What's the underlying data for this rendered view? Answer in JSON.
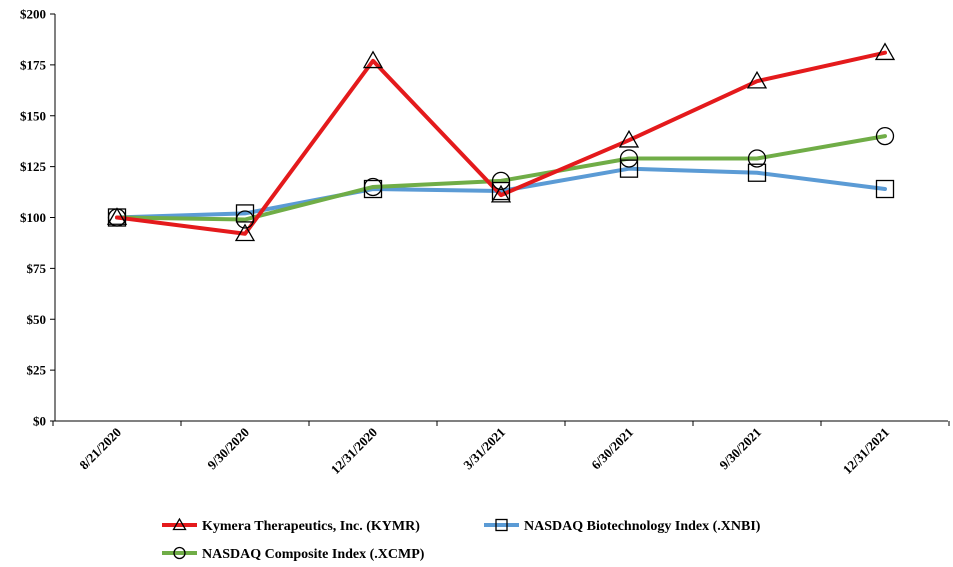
{
  "chart_data": {
    "type": "line",
    "title": "",
    "xlabel": "",
    "ylabel": "",
    "categories": [
      "8/21/2020",
      "9/30/2020",
      "12/31/2020",
      "3/31/2021",
      "6/30/2021",
      "9/30/2021",
      "12/31/2021"
    ],
    "y_ticks": [
      "$0",
      "$25",
      "$50",
      "$75",
      "$100",
      "$125",
      "$150",
      "$175",
      "$200"
    ],
    "ylim": [
      0,
      200
    ],
    "grid": false,
    "legend_position": "bottom",
    "series": [
      {
        "name": "Kymera Therapeutics, Inc. (KYMR)",
        "color": "#e41a1c",
        "marker": "triangle",
        "values": [
          100,
          92,
          177,
          111,
          138,
          167,
          181
        ]
      },
      {
        "name": "NASDAQ Biotechnology Index (.XNBI)",
        "color": "#5b9bd5",
        "marker": "square",
        "values": [
          100,
          102,
          114,
          113,
          124,
          122,
          114
        ]
      },
      {
        "name": "NASDAQ Composite Index (.XCMP)",
        "color": "#70ad47",
        "marker": "circle",
        "values": [
          100,
          99,
          115,
          118,
          129,
          129,
          140
        ]
      }
    ]
  }
}
